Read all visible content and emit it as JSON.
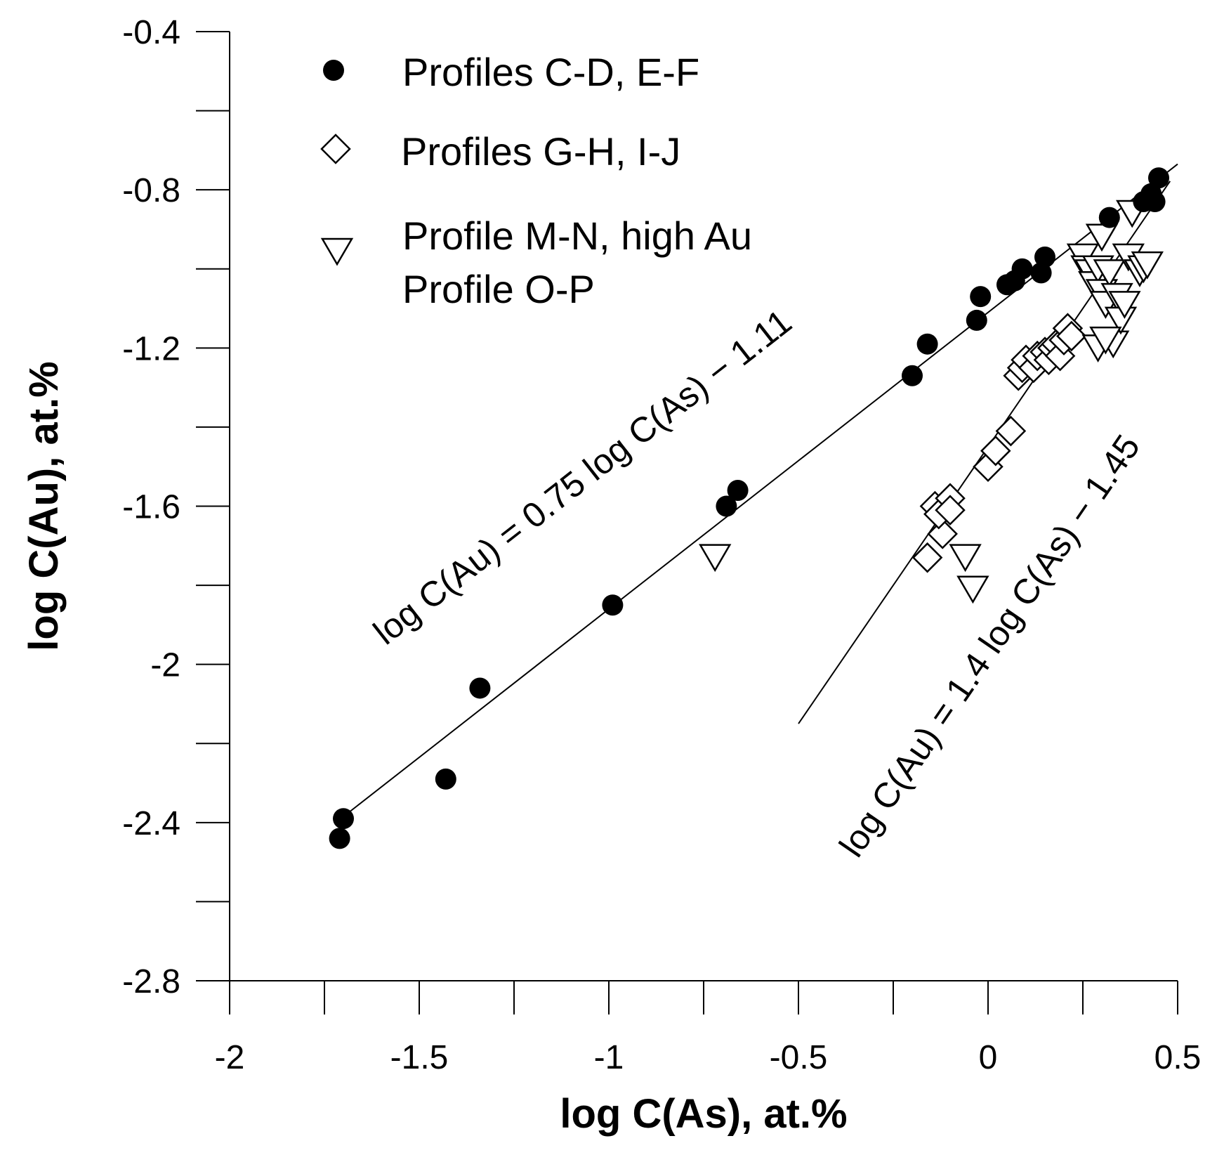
{
  "chart_data": {
    "type": "scatter",
    "title": "",
    "xlabel": "log C(As), at.%",
    "ylabel": "log C(Au), at.%",
    "xlim": [
      -2,
      0.5
    ],
    "ylim": [
      -2.8,
      -0.4
    ],
    "xticks": [
      -2,
      -1.5,
      -1,
      -0.5,
      0,
      0.5
    ],
    "xtick_labels": [
      "-2",
      "-1.5",
      "-1",
      "-0.5",
      "0",
      "0.5"
    ],
    "yticks": [
      -0.4,
      -0.8,
      -1.2,
      -1.6,
      -2,
      -2.4,
      -2.8
    ],
    "ytick_labels": [
      "-0.4",
      "-0.8",
      "-1.2",
      "-1.6",
      "-2",
      "-2.4",
      "-2.8"
    ],
    "grid": false,
    "legend_position": "top-left",
    "legend": [
      {
        "label": "Profiles C-D, E-F",
        "marker": "filled-circle"
      },
      {
        "label": "Profiles G-H, I-J",
        "marker": "open-diamond"
      },
      {
        "label_lines": [
          "Profile M-N, high Au",
          "Profile O-P"
        ],
        "marker": "open-triangle-down"
      }
    ],
    "series": [
      {
        "name": "Profiles C-D, E-F",
        "marker": "filled-circle",
        "points": [
          [
            -1.71,
            -2.44
          ],
          [
            -1.7,
            -2.39
          ],
          [
            -1.43,
            -2.29
          ],
          [
            -1.34,
            -2.06
          ],
          [
            -0.99,
            -1.85
          ],
          [
            -0.69,
            -1.6
          ],
          [
            -0.66,
            -1.56
          ],
          [
            -0.2,
            -1.27
          ],
          [
            -0.16,
            -1.19
          ],
          [
            -0.03,
            -1.13
          ],
          [
            -0.02,
            -1.07
          ],
          [
            0.05,
            -1.04
          ],
          [
            0.07,
            -1.03
          ],
          [
            0.09,
            -1.0
          ],
          [
            0.14,
            -1.01
          ],
          [
            0.15,
            -0.97
          ],
          [
            0.32,
            -0.87
          ],
          [
            0.41,
            -0.83
          ],
          [
            0.43,
            -0.81
          ],
          [
            0.44,
            -0.83
          ],
          [
            0.45,
            -0.77
          ]
        ]
      },
      {
        "name": "Profiles G-H, I-J",
        "marker": "open-diamond",
        "points": [
          [
            -0.16,
            -1.73
          ],
          [
            -0.12,
            -1.67
          ],
          [
            -0.14,
            -1.6
          ],
          [
            -0.13,
            -1.62
          ],
          [
            -0.1,
            -1.58
          ],
          [
            -0.1,
            -1.61
          ],
          [
            0.0,
            -1.5
          ],
          [
            0.02,
            -1.46
          ],
          [
            0.06,
            -1.41
          ],
          [
            0.08,
            -1.27
          ],
          [
            0.09,
            -1.25
          ],
          [
            0.1,
            -1.23
          ],
          [
            0.12,
            -1.25
          ],
          [
            0.13,
            -1.22
          ],
          [
            0.15,
            -1.21
          ],
          [
            0.16,
            -1.23
          ],
          [
            0.17,
            -1.2
          ],
          [
            0.18,
            -1.19
          ],
          [
            0.19,
            -1.22
          ],
          [
            0.2,
            -1.18
          ],
          [
            0.21,
            -1.15
          ],
          [
            0.22,
            -1.17
          ]
        ]
      },
      {
        "name": "Profile M-N, high Au / Profile O-P",
        "marker": "open-triangle-down",
        "points": [
          [
            -0.72,
            -1.73
          ],
          [
            -0.06,
            -1.73
          ],
          [
            -0.04,
            -1.81
          ],
          [
            0.25,
            -0.97
          ],
          [
            0.26,
            -1.0
          ],
          [
            0.27,
            -1.01
          ],
          [
            0.28,
            -1.04
          ],
          [
            0.29,
            -1.0
          ],
          [
            0.3,
            -0.92
          ],
          [
            0.3,
            -1.06
          ],
          [
            0.31,
            -1.09
          ],
          [
            0.32,
            -1.01
          ],
          [
            0.33,
            -1.19
          ],
          [
            0.34,
            -1.07
          ],
          [
            0.35,
            -1.13
          ],
          [
            0.36,
            -1.09
          ],
          [
            0.37,
            -0.97
          ],
          [
            0.38,
            -0.86
          ],
          [
            0.4,
            -1.01
          ],
          [
            0.41,
            -1.0
          ],
          [
            0.42,
            -0.99
          ],
          [
            0.29,
            -1.2
          ],
          [
            0.31,
            -1.18
          ]
        ]
      }
    ],
    "fit_lines": [
      {
        "label": "log C(Au) = 0.75 log C(As) − 1.11",
        "slope": 0.75,
        "intercept": -1.11,
        "x_range": [
          -1.7,
          0.5
        ]
      },
      {
        "label": "log C(Au) = 1.4 log C(As) − 1.45",
        "slope": 1.4,
        "intercept": -1.45,
        "x_range": [
          -0.5,
          0.48
        ]
      }
    ]
  }
}
